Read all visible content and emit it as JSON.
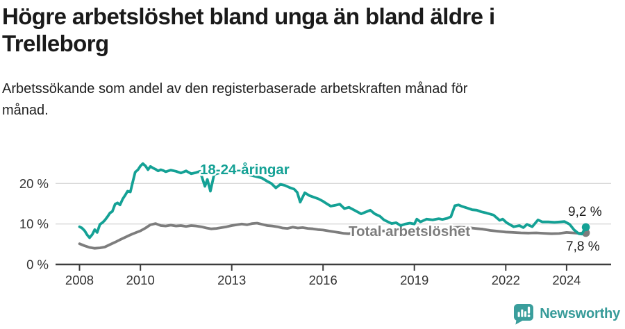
{
  "header": {
    "title_line1": "Högre arbetslöshet bland unga än bland äldre i",
    "title_line2": "Trelleborg",
    "subtitle_line1": "Arbetssökande som andel av den registerbaserade arbetskraften månad för",
    "subtitle_line2": "månad."
  },
  "footer": {
    "brand": "Newsworthy",
    "logo_icon": "bar-chart-speech-bubble"
  },
  "colors": {
    "young": "#14a195",
    "total": "#7d7d7d",
    "axis": "#3d3d3d",
    "grid": "#d8d8d8",
    "tick_text": "#333333",
    "value_text": "#1a1a1a",
    "brand_teal": "#3a9e9c"
  },
  "chart_data": {
    "type": "line",
    "title": "Högre arbetslöshet bland unga än bland äldre i Trelleborg",
    "subtitle": "Arbetssökande som andel av den registerbaserade arbetskraften månad för månad.",
    "grid": "horizontal",
    "legend": "inline-labels",
    "x_axis": {
      "label": "",
      "ticks": [
        2008,
        2010,
        2013,
        2016,
        2019,
        2022,
        2024
      ],
      "tick_labels": [
        "2008",
        "2010",
        "2013",
        "2016",
        "2019",
        "2022",
        "2024"
      ],
      "range": [
        2007.2,
        2025.5
      ]
    },
    "y_axis": {
      "label": "",
      "unit": "%",
      "ticks": [
        0,
        10,
        20
      ],
      "tick_labels": [
        "0 %",
        "10 %",
        "20 %"
      ],
      "range": [
        0,
        27
      ]
    },
    "series": [
      {
        "name": "18-24-åringar",
        "label_text": "18-24-åringar",
        "color": "#14a195",
        "end_label": "9,2 %",
        "end_value": 9.2,
        "points": [
          [
            2008.0,
            9.3
          ],
          [
            2008.08,
            9.0
          ],
          [
            2008.17,
            8.3
          ],
          [
            2008.25,
            7.3
          ],
          [
            2008.33,
            6.6
          ],
          [
            2008.42,
            7.4
          ],
          [
            2008.5,
            8.6
          ],
          [
            2008.58,
            7.9
          ],
          [
            2008.67,
            9.9
          ],
          [
            2008.75,
            10.3
          ],
          [
            2008.83,
            10.9
          ],
          [
            2008.92,
            11.8
          ],
          [
            2009.0,
            12.7
          ],
          [
            2009.08,
            13.1
          ],
          [
            2009.17,
            14.9
          ],
          [
            2009.25,
            15.2
          ],
          [
            2009.33,
            14.7
          ],
          [
            2009.42,
            16.2
          ],
          [
            2009.5,
            17.1
          ],
          [
            2009.58,
            18.1
          ],
          [
            2009.67,
            17.9
          ],
          [
            2009.75,
            20.4
          ],
          [
            2009.83,
            22.8
          ],
          [
            2009.92,
            23.4
          ],
          [
            2010.0,
            24.3
          ],
          [
            2010.08,
            24.9
          ],
          [
            2010.17,
            24.3
          ],
          [
            2010.25,
            23.4
          ],
          [
            2010.33,
            24.2
          ],
          [
            2010.42,
            23.8
          ],
          [
            2010.5,
            23.5
          ],
          [
            2010.58,
            23.1
          ],
          [
            2010.67,
            23.4
          ],
          [
            2010.75,
            23.2
          ],
          [
            2010.83,
            22.9
          ],
          [
            2010.92,
            23.1
          ],
          [
            2011.0,
            23.3
          ],
          [
            2011.17,
            23.0
          ],
          [
            2011.33,
            22.6
          ],
          [
            2011.5,
            23.1
          ],
          [
            2011.67,
            22.4
          ],
          [
            2011.83,
            22.7
          ],
          [
            2011.96,
            23.0
          ],
          [
            2012.12,
            19.3
          ],
          [
            2012.2,
            21.0
          ],
          [
            2012.3,
            18.1
          ],
          [
            2012.42,
            22.2
          ],
          [
            2012.58,
            22.6
          ],
          [
            2012.75,
            22.3
          ],
          [
            2012.92,
            22.8
          ],
          [
            2013.08,
            22.6
          ],
          [
            2013.25,
            23.0
          ],
          [
            2013.42,
            22.5
          ],
          [
            2013.58,
            22.1
          ],
          [
            2013.75,
            21.8
          ],
          [
            2013.92,
            21.5
          ],
          [
            2014.0,
            21.3
          ],
          [
            2014.15,
            20.6
          ],
          [
            2014.3,
            20.0
          ],
          [
            2014.45,
            18.9
          ],
          [
            2014.6,
            19.8
          ],
          [
            2014.75,
            19.5
          ],
          [
            2014.9,
            19.0
          ],
          [
            2015.05,
            18.6
          ],
          [
            2015.15,
            17.8
          ],
          [
            2015.25,
            15.4
          ],
          [
            2015.4,
            17.7
          ],
          [
            2015.55,
            17.0
          ],
          [
            2015.7,
            16.6
          ],
          [
            2015.85,
            16.2
          ],
          [
            2016.0,
            15.6
          ],
          [
            2016.1,
            15.1
          ],
          [
            2016.25,
            14.4
          ],
          [
            2016.4,
            14.6
          ],
          [
            2016.55,
            14.9
          ],
          [
            2016.7,
            13.8
          ],
          [
            2016.85,
            14.1
          ],
          [
            2017.0,
            13.5
          ],
          [
            2017.25,
            12.5
          ],
          [
            2017.55,
            13.4
          ],
          [
            2017.7,
            12.5
          ],
          [
            2017.87,
            11.9
          ],
          [
            2018.0,
            11.0
          ],
          [
            2018.25,
            10.1
          ],
          [
            2018.4,
            10.3
          ],
          [
            2018.55,
            9.6
          ],
          [
            2018.7,
            10.0
          ],
          [
            2018.85,
            10.2
          ],
          [
            2019.0,
            10.0
          ],
          [
            2019.08,
            11.2
          ],
          [
            2019.2,
            10.5
          ],
          [
            2019.4,
            11.2
          ],
          [
            2019.6,
            11.0
          ],
          [
            2019.8,
            11.3
          ],
          [
            2019.92,
            11.1
          ],
          [
            2020.08,
            11.4
          ],
          [
            2020.2,
            11.8
          ],
          [
            2020.33,
            14.5
          ],
          [
            2020.45,
            14.7
          ],
          [
            2020.58,
            14.3
          ],
          [
            2020.75,
            13.9
          ],
          [
            2020.9,
            13.5
          ],
          [
            2021.05,
            13.4
          ],
          [
            2021.2,
            13.0
          ],
          [
            2021.37,
            12.7
          ],
          [
            2021.6,
            12.2
          ],
          [
            2021.8,
            10.9
          ],
          [
            2021.9,
            11.2
          ],
          [
            2022.03,
            10.3
          ],
          [
            2022.26,
            9.3
          ],
          [
            2022.45,
            9.6
          ],
          [
            2022.58,
            9.1
          ],
          [
            2022.7,
            9.9
          ],
          [
            2022.87,
            9.3
          ],
          [
            2023.06,
            11.0
          ],
          [
            2023.2,
            10.5
          ],
          [
            2023.4,
            10.5
          ],
          [
            2023.6,
            10.4
          ],
          [
            2023.8,
            10.5
          ],
          [
            2023.93,
            10.6
          ],
          [
            2024.1,
            9.9
          ],
          [
            2024.25,
            8.5
          ],
          [
            2024.4,
            7.6
          ],
          [
            2024.5,
            7.5
          ],
          [
            2024.56,
            8.3
          ],
          [
            2024.63,
            9.2
          ]
        ]
      },
      {
        "name": "Total arbetslöshet",
        "label_text": "Total arbetslöshet",
        "color": "#7d7d7d",
        "end_label": "7,8 %",
        "end_value": 7.8,
        "points": [
          [
            2008.0,
            5.1
          ],
          [
            2008.17,
            4.6
          ],
          [
            2008.33,
            4.2
          ],
          [
            2008.5,
            4.0
          ],
          [
            2008.67,
            4.1
          ],
          [
            2008.83,
            4.3
          ],
          [
            2009.0,
            4.9
          ],
          [
            2009.17,
            5.5
          ],
          [
            2009.33,
            6.1
          ],
          [
            2009.5,
            6.7
          ],
          [
            2009.67,
            7.3
          ],
          [
            2009.83,
            7.8
          ],
          [
            2010.0,
            8.3
          ],
          [
            2010.17,
            9.0
          ],
          [
            2010.33,
            9.8
          ],
          [
            2010.5,
            10.1
          ],
          [
            2010.67,
            9.6
          ],
          [
            2010.83,
            9.5
          ],
          [
            2011.0,
            9.7
          ],
          [
            2011.17,
            9.5
          ],
          [
            2011.33,
            9.6
          ],
          [
            2011.5,
            9.4
          ],
          [
            2011.67,
            9.6
          ],
          [
            2011.83,
            9.5
          ],
          [
            2012.0,
            9.3
          ],
          [
            2012.17,
            9.0
          ],
          [
            2012.33,
            8.8
          ],
          [
            2012.5,
            8.9
          ],
          [
            2012.67,
            9.1
          ],
          [
            2012.83,
            9.3
          ],
          [
            2013.0,
            9.6
          ],
          [
            2013.17,
            9.8
          ],
          [
            2013.33,
            10.0
          ],
          [
            2013.5,
            9.8
          ],
          [
            2013.67,
            10.1
          ],
          [
            2013.83,
            10.2
          ],
          [
            2014.0,
            9.9
          ],
          [
            2014.17,
            9.6
          ],
          [
            2014.33,
            9.5
          ],
          [
            2014.5,
            9.3
          ],
          [
            2014.67,
            9.0
          ],
          [
            2014.83,
            8.9
          ],
          [
            2015.0,
            9.2
          ],
          [
            2015.17,
            9.0
          ],
          [
            2015.33,
            9.1
          ],
          [
            2015.5,
            8.9
          ],
          [
            2015.67,
            8.8
          ],
          [
            2015.83,
            8.6
          ],
          [
            2016.0,
            8.5
          ],
          [
            2016.17,
            8.3
          ],
          [
            2016.33,
            8.1
          ],
          [
            2016.5,
            7.9
          ],
          [
            2016.67,
            7.7
          ],
          [
            2016.83,
            7.6
          ],
          [
            2017.0,
            7.8
          ],
          [
            2017.25,
            8.1
          ],
          [
            2017.5,
            8.3
          ],
          [
            2017.75,
            8.2
          ],
          [
            2018.0,
            8.3
          ],
          [
            2018.25,
            8.2
          ],
          [
            2018.5,
            8.3
          ],
          [
            2018.75,
            8.3
          ],
          [
            2019.0,
            8.3
          ],
          [
            2019.25,
            8.2
          ],
          [
            2019.5,
            8.4
          ],
          [
            2019.75,
            8.5
          ],
          [
            2020.0,
            8.7
          ],
          [
            2020.25,
            9.1
          ],
          [
            2020.5,
            9.2
          ],
          [
            2020.75,
            9.1
          ],
          [
            2021.0,
            8.9
          ],
          [
            2021.25,
            8.7
          ],
          [
            2021.5,
            8.4
          ],
          [
            2021.75,
            8.2
          ],
          [
            2022.0,
            8.0
          ],
          [
            2022.25,
            7.9
          ],
          [
            2022.5,
            7.8
          ],
          [
            2022.75,
            7.75
          ],
          [
            2023.0,
            7.8
          ],
          [
            2023.25,
            7.7
          ],
          [
            2023.5,
            7.6
          ],
          [
            2023.75,
            7.65
          ],
          [
            2024.0,
            7.9
          ],
          [
            2024.2,
            7.8
          ],
          [
            2024.4,
            7.7
          ],
          [
            2024.63,
            7.8
          ]
        ]
      }
    ]
  }
}
